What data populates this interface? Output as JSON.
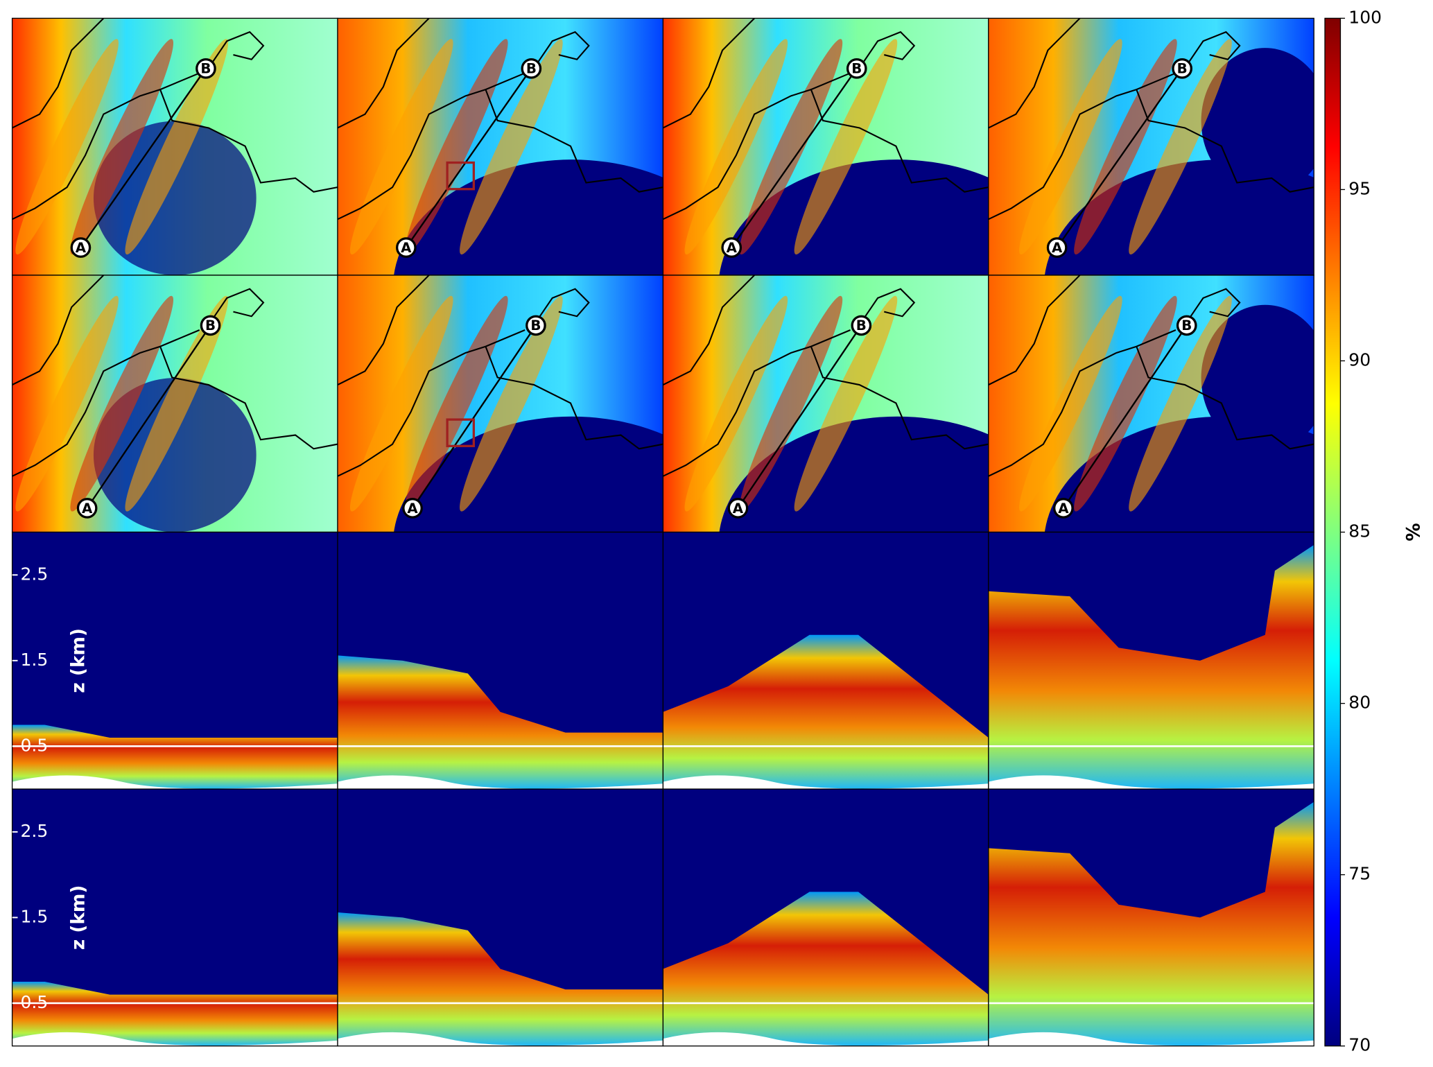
{
  "chart_data": {
    "type": "heatmap",
    "colormap": "jet",
    "colorbar": {
      "label": "%",
      "lim": [
        70,
        100
      ],
      "ticks": [
        70,
        75,
        80,
        85,
        90,
        95,
        100
      ]
    },
    "map_markers": [
      "A",
      "B"
    ],
    "section": {
      "ylabel": "z (km)",
      "ylim": [
        0,
        3
      ],
      "yticks": [
        0.5,
        1.5,
        2.5
      ],
      "reference_line": 0.5
    }
  }
}
